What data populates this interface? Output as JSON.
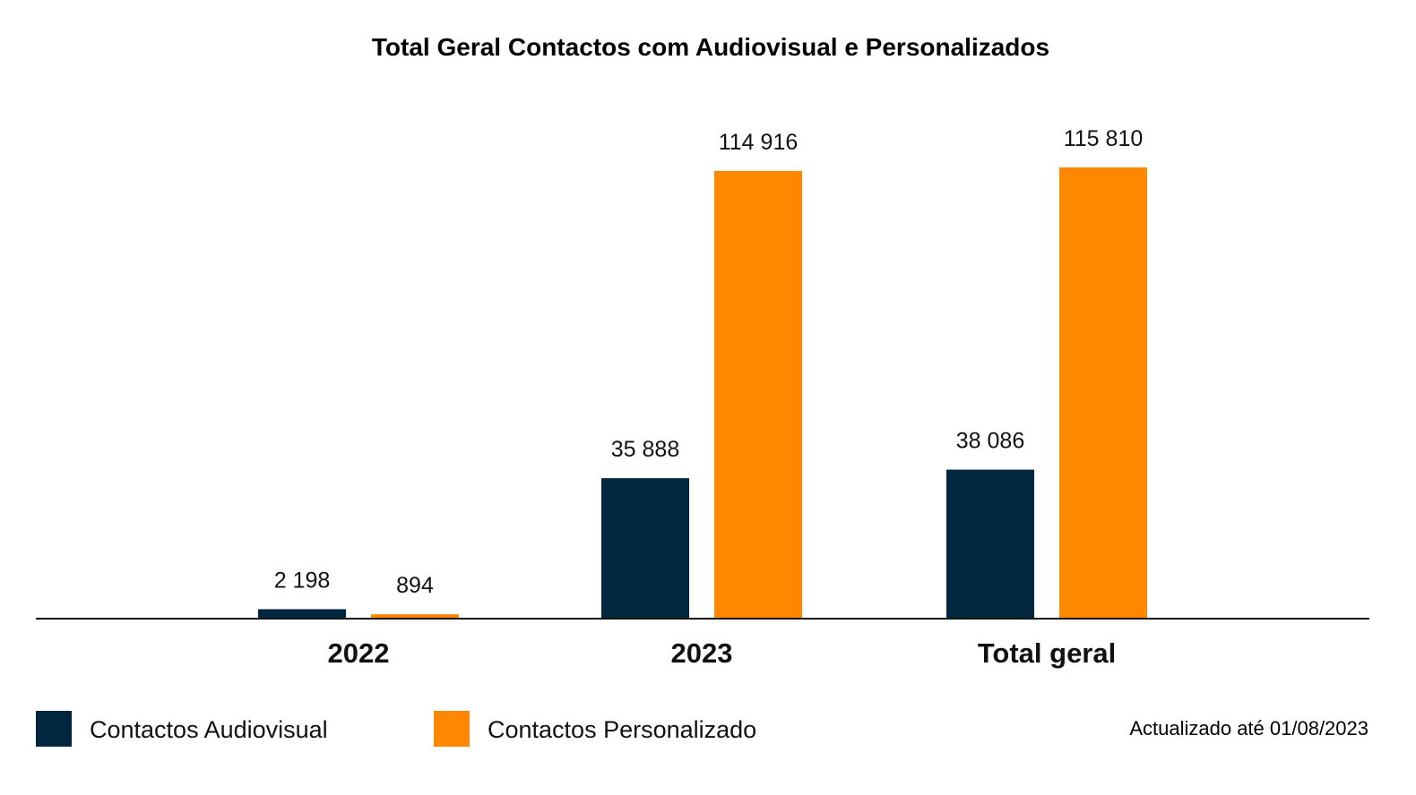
{
  "chart_data": {
    "type": "bar",
    "title": "Total Geral Contactos com Audiovisual e Personalizados",
    "categories": [
      "2022",
      "2023",
      "Total geral"
    ],
    "series": [
      {
        "name": "Contactos Audiovisual",
        "color": "#01263f",
        "values": [
          2198,
          35888,
          38086
        ],
        "labels": [
          "2 198",
          "35 888",
          "38 086"
        ]
      },
      {
        "name": "Contactos Personalizado",
        "color": "#ff8800",
        "values": [
          894,
          114916,
          115810
        ],
        "labels": [
          "894",
          "114 916",
          "115 810"
        ]
      }
    ],
    "ylim": [
      0,
      115810
    ],
    "grid": false,
    "legend": "bottom-left",
    "note": "Actualizado até 01/08/2023"
  }
}
